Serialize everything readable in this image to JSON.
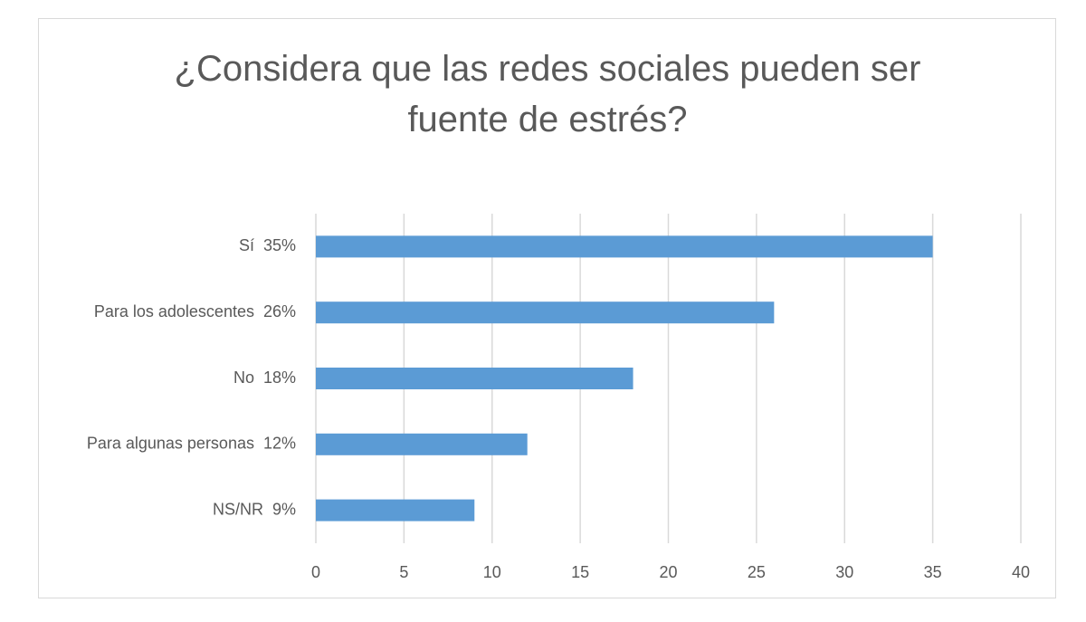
{
  "chart_data": {
    "type": "hbar",
    "title": "¿Considera que las redes sociales pueden ser fuente de estrés?",
    "categories": [
      "Sí  35%",
      "Para los adolescentes  26%",
      "No  18%",
      "Para algunas personas  12%",
      "NS/NR  9%"
    ],
    "values": [
      35,
      26,
      18,
      12,
      9
    ],
    "color": "#5b9bd5",
    "xlim": [
      0,
      40
    ],
    "xticks": [
      0,
      5,
      10,
      15,
      20,
      25,
      30,
      35,
      40
    ],
    "grid": true
  }
}
